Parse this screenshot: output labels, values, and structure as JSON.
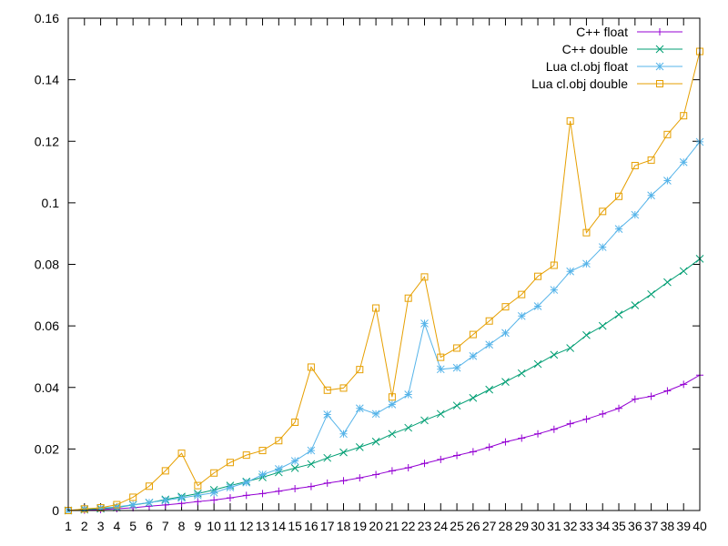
{
  "chart_data": {
    "type": "line",
    "xlim": [
      1,
      40
    ],
    "ylim": [
      0,
      0.16
    ],
    "x_ticks": [
      1,
      2,
      3,
      4,
      5,
      6,
      7,
      8,
      9,
      10,
      11,
      12,
      13,
      14,
      15,
      16,
      17,
      18,
      19,
      20,
      21,
      22,
      23,
      24,
      25,
      26,
      27,
      28,
      29,
      30,
      31,
      32,
      33,
      34,
      35,
      36,
      37,
      38,
      39,
      40
    ],
    "y_ticks": [
      0,
      0.02,
      0.04,
      0.06,
      0.08,
      0.1,
      0.12,
      0.14,
      0.16
    ],
    "y_tick_labels": [
      "0",
      "0.02",
      "0.04",
      "0.06",
      "0.08",
      "0.1",
      "0.12",
      "0.14",
      "0.16"
    ],
    "grid": false,
    "legend_position": "top-right",
    "x": [
      1,
      2,
      3,
      4,
      5,
      6,
      7,
      8,
      9,
      10,
      11,
      12,
      13,
      14,
      15,
      16,
      17,
      18,
      19,
      20,
      21,
      22,
      23,
      24,
      25,
      26,
      27,
      28,
      29,
      30,
      31,
      32,
      33,
      34,
      35,
      36,
      37,
      38,
      39,
      40
    ],
    "series": [
      {
        "name": "C++ float",
        "color": "#9400d3",
        "marker": "plus",
        "values": [
          0,
          0.0001,
          0.0003,
          0.0006,
          0.0009,
          0.0014,
          0.0018,
          0.0023,
          0.0029,
          0.0034,
          0.0041,
          0.0049,
          0.0055,
          0.0063,
          0.0071,
          0.0078,
          0.0089,
          0.0097,
          0.0106,
          0.0117,
          0.0129,
          0.0139,
          0.0153,
          0.0166,
          0.0179,
          0.0191,
          0.0206,
          0.0223,
          0.0235,
          0.0249,
          0.0264,
          0.0282,
          0.0297,
          0.0314,
          0.0332,
          0.0362,
          0.0371,
          0.0389,
          0.041,
          0.044
        ]
      },
      {
        "name": "C++ double",
        "color": "#009e73",
        "marker": "cross",
        "values": [
          0,
          0.0003,
          0.0006,
          0.001,
          0.0018,
          0.0025,
          0.0036,
          0.0045,
          0.0055,
          0.0067,
          0.0081,
          0.0094,
          0.0108,
          0.0124,
          0.0138,
          0.0151,
          0.0171,
          0.0189,
          0.0206,
          0.0224,
          0.0249,
          0.0269,
          0.0293,
          0.0314,
          0.0341,
          0.0366,
          0.0393,
          0.0418,
          0.0446,
          0.0476,
          0.0506,
          0.0528,
          0.057,
          0.06,
          0.0637,
          0.0667,
          0.0703,
          0.0742,
          0.0778,
          0.0818
        ]
      },
      {
        "name": "Lua cl.obj float",
        "color": "#56b4e9",
        "marker": "star",
        "values": [
          0,
          0.0005,
          0.0008,
          0.0012,
          0.0019,
          0.0026,
          0.0033,
          0.0041,
          0.0049,
          0.0058,
          0.0075,
          0.0091,
          0.0117,
          0.0135,
          0.0161,
          0.0195,
          0.0312,
          0.0249,
          0.0332,
          0.0314,
          0.0345,
          0.0377,
          0.0608,
          0.0459,
          0.0464,
          0.0502,
          0.0539,
          0.0577,
          0.0632,
          0.0664,
          0.0717,
          0.0777,
          0.0802,
          0.0856,
          0.0915,
          0.0961,
          0.1024,
          0.1072,
          0.1132,
          0.1198
        ]
      },
      {
        "name": "Lua cl.obj double",
        "color": "#e69f00",
        "marker": "box",
        "values": [
          0,
          0.0005,
          0.0009,
          0.0019,
          0.0043,
          0.0079,
          0.0129,
          0.0186,
          0.0081,
          0.0122,
          0.0156,
          0.018,
          0.0195,
          0.0227,
          0.0287,
          0.0466,
          0.0391,
          0.0398,
          0.0458,
          0.0658,
          0.0369,
          0.069,
          0.0759,
          0.0498,
          0.0528,
          0.0572,
          0.0616,
          0.0662,
          0.0702,
          0.0761,
          0.0797,
          0.1266,
          0.0903,
          0.0972,
          0.1021,
          0.1121,
          0.1139,
          0.1222,
          0.1283,
          0.1492
        ]
      }
    ]
  }
}
